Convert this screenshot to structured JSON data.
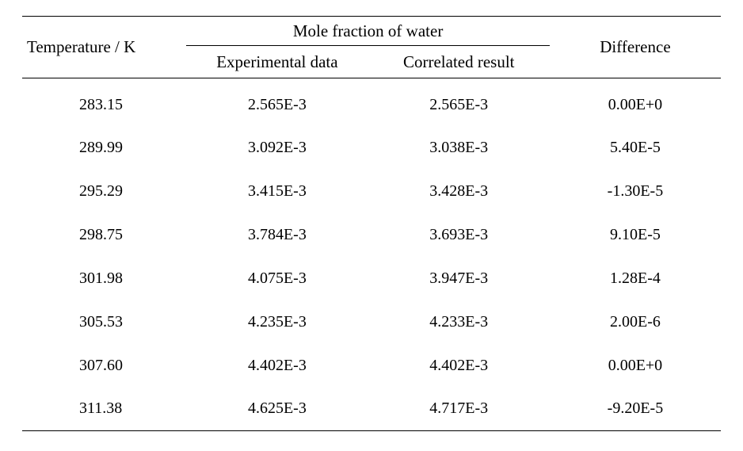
{
  "table": {
    "type": "table",
    "background_color": "#ffffff",
    "text_color": "#000000",
    "rule_color": "#000000",
    "font_family": "Times New Roman",
    "header_fontsize_pt": 16,
    "body_fontsize_pt": 15,
    "columns": {
      "temperature": {
        "label": "Temperature / K",
        "width_pct": 23.5,
        "align": "left"
      },
      "group": {
        "label": "Mole fraction of water"
      },
      "experimental": {
        "label": "Experimental data",
        "width_pct": 26,
        "align": "center"
      },
      "correlated": {
        "label": "Correlated result",
        "width_pct": 26,
        "align": "center"
      },
      "difference": {
        "label": "Difference",
        "width_pct": 24.5,
        "align": "center"
      }
    },
    "rows": [
      {
        "temperature": "283.15",
        "experimental": "2.565E-3",
        "correlated": "2.565E-3",
        "difference": "0.00E+0"
      },
      {
        "temperature": "289.99",
        "experimental": "3.092E-3",
        "correlated": "3.038E-3",
        "difference": "5.40E-5"
      },
      {
        "temperature": "295.29",
        "experimental": "3.415E-3",
        "correlated": "3.428E-3",
        "difference": "-1.30E-5"
      },
      {
        "temperature": "298.75",
        "experimental": "3.784E-3",
        "correlated": "3.693E-3",
        "difference": "9.10E-5"
      },
      {
        "temperature": "301.98",
        "experimental": "4.075E-3",
        "correlated": "3.947E-3",
        "difference": "1.28E-4"
      },
      {
        "temperature": "305.53",
        "experimental": "4.235E-3",
        "correlated": "4.233E-3",
        "difference": "2.00E-6"
      },
      {
        "temperature": "307.60",
        "experimental": "4.402E-3",
        "correlated": "4.402E-3",
        "difference": "0.00E+0"
      },
      {
        "temperature": "311.38",
        "experimental": "4.625E-3",
        "correlated": "4.717E-3",
        "difference": "-9.20E-5"
      }
    ]
  }
}
